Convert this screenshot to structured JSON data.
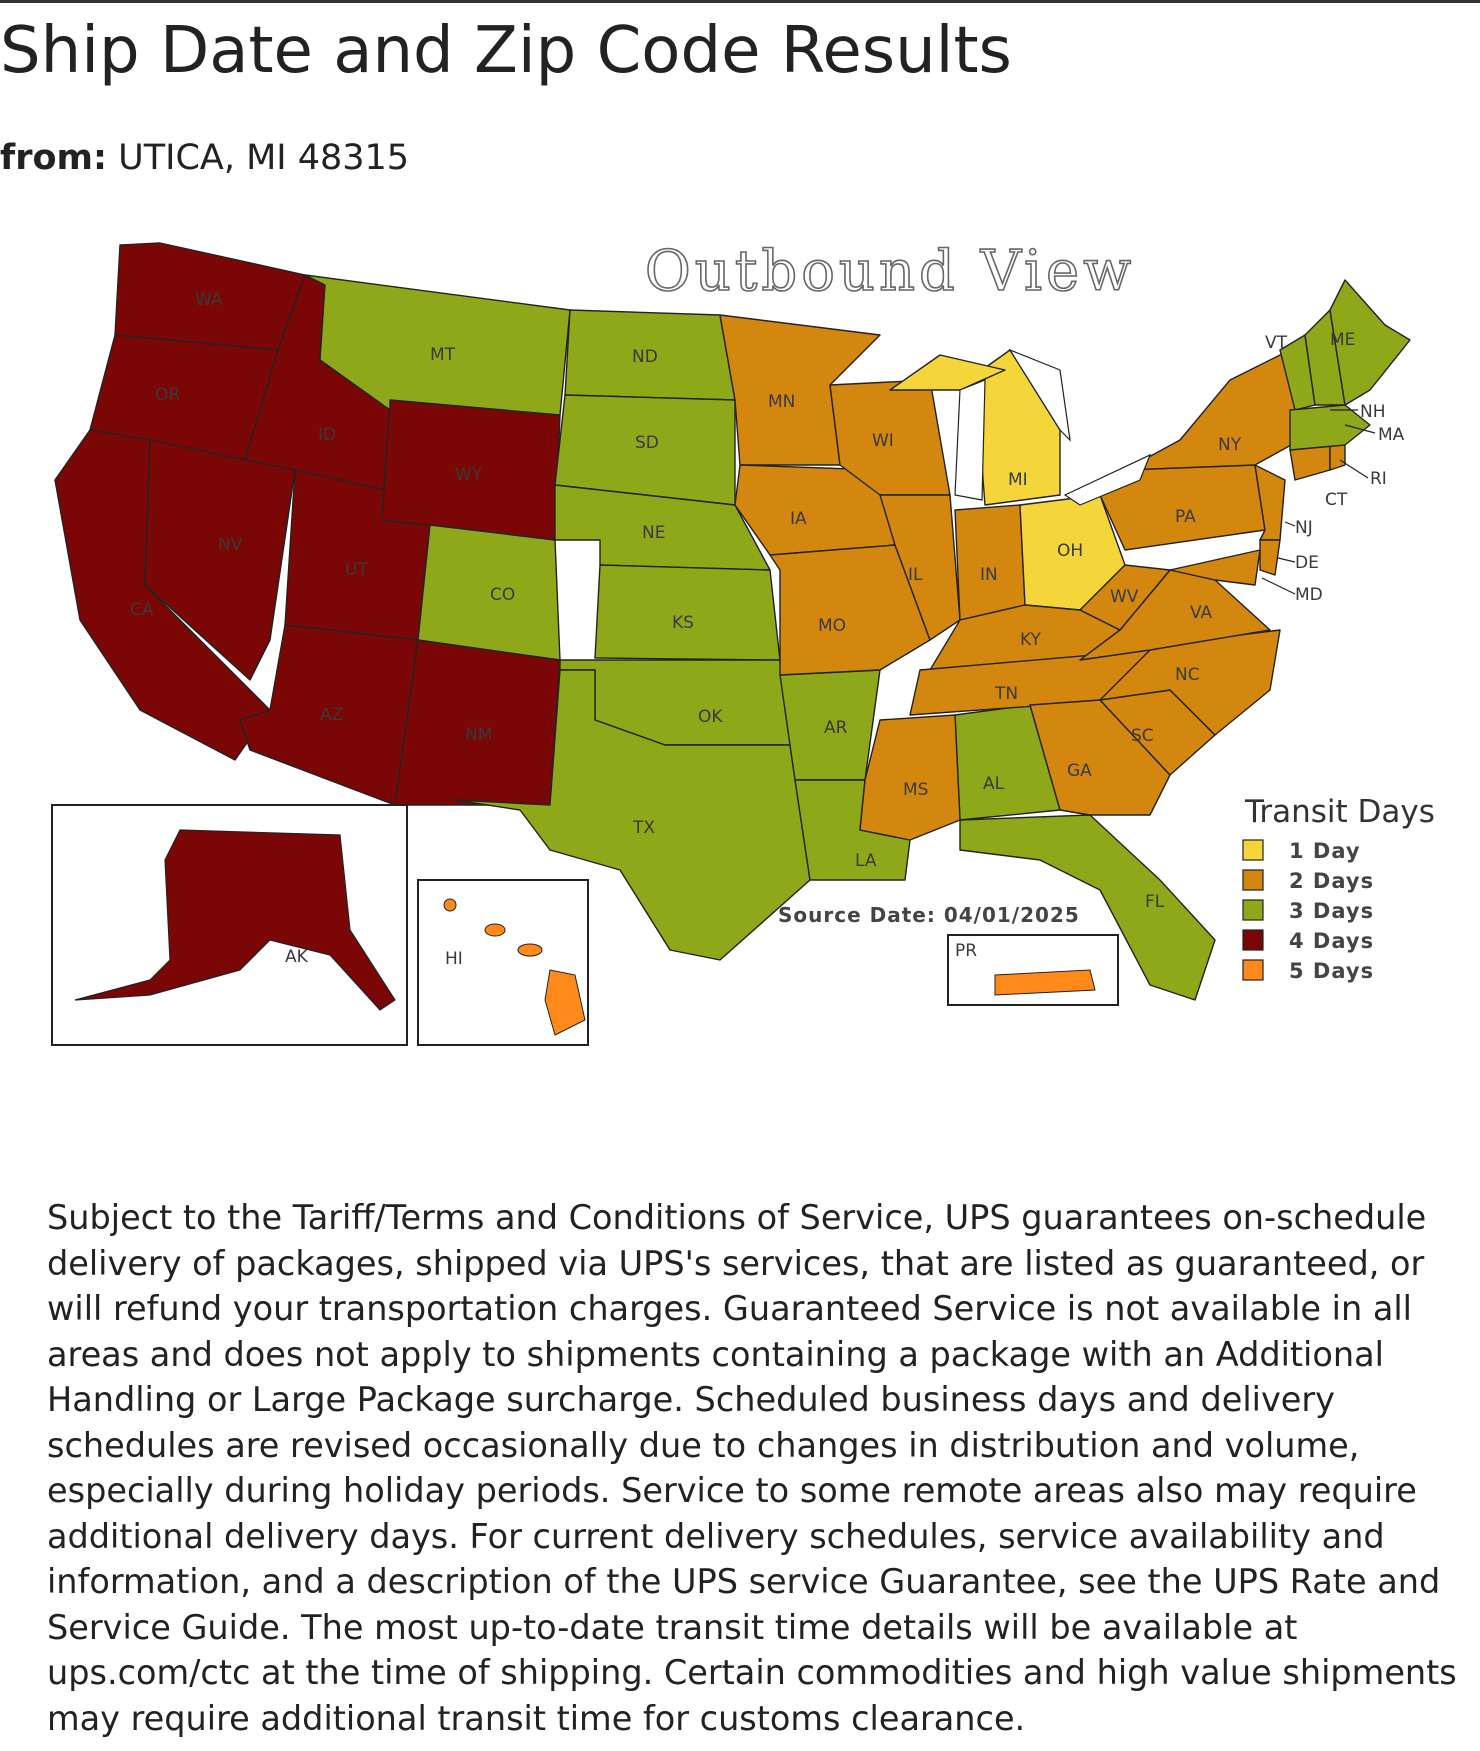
{
  "page": {
    "title": "Ship Date and Zip Code Results",
    "from_label": "from:",
    "from_value": "UTICA, MI 48315"
  },
  "map": {
    "title": "Outbound View",
    "source_date": "Source Date: 04/01/2025",
    "legend": {
      "title": "Transit Days",
      "items": [
        {
          "label": "1 Day",
          "color": "#F5D63A"
        },
        {
          "label": "2 Days",
          "color": "#D4870F"
        },
        {
          "label": "3 Days",
          "color": "#8FA81A"
        },
        {
          "label": "4 Days",
          "color": "#7A0606"
        },
        {
          "label": "5 Days",
          "color": "#FF8A1A"
        }
      ]
    },
    "states": [
      {
        "abbr": "WA",
        "transit_days": 4
      },
      {
        "abbr": "OR",
        "transit_days": 4
      },
      {
        "abbr": "CA",
        "transit_days": 4
      },
      {
        "abbr": "ID",
        "transit_days": 4
      },
      {
        "abbr": "NV",
        "transit_days": 4
      },
      {
        "abbr": "UT",
        "transit_days": 4
      },
      {
        "abbr": "AZ",
        "transit_days": 4
      },
      {
        "abbr": "NM",
        "transit_days": 4
      },
      {
        "abbr": "WY",
        "transit_days": 4
      },
      {
        "abbr": "MT",
        "transit_days": 3
      },
      {
        "abbr": "CO",
        "transit_days": 3
      },
      {
        "abbr": "ND",
        "transit_days": 3
      },
      {
        "abbr": "SD",
        "transit_days": 3
      },
      {
        "abbr": "NE",
        "transit_days": 3
      },
      {
        "abbr": "KS",
        "transit_days": 3
      },
      {
        "abbr": "OK",
        "transit_days": 3
      },
      {
        "abbr": "TX",
        "transit_days": 3
      },
      {
        "abbr": "AR",
        "transit_days": 3
      },
      {
        "abbr": "LA",
        "transit_days": 3
      },
      {
        "abbr": "FL",
        "transit_days": 3
      },
      {
        "abbr": "AL",
        "transit_days": 3
      },
      {
        "abbr": "MN",
        "transit_days": 2
      },
      {
        "abbr": "IA",
        "transit_days": 2
      },
      {
        "abbr": "MO",
        "transit_days": 2
      },
      {
        "abbr": "WI",
        "transit_days": 2
      },
      {
        "abbr": "IL",
        "transit_days": 2
      },
      {
        "abbr": "IN",
        "transit_days": 2
      },
      {
        "abbr": "OH",
        "transit_days": 1
      },
      {
        "abbr": "MI",
        "transit_days": 1
      },
      {
        "abbr": "KY",
        "transit_days": 2
      },
      {
        "abbr": "TN",
        "transit_days": 2
      },
      {
        "abbr": "MS",
        "transit_days": 2
      },
      {
        "abbr": "GA",
        "transit_days": 2
      },
      {
        "abbr": "SC",
        "transit_days": 2
      },
      {
        "abbr": "NC",
        "transit_days": 2
      },
      {
        "abbr": "VA",
        "transit_days": 2
      },
      {
        "abbr": "WV",
        "transit_days": 2
      },
      {
        "abbr": "PA",
        "transit_days": 2
      },
      {
        "abbr": "NY",
        "transit_days": 2
      },
      {
        "abbr": "VT",
        "transit_days": 3
      },
      {
        "abbr": "ME",
        "transit_days": 3
      },
      {
        "abbr": "NH",
        "transit_days": 3
      },
      {
        "abbr": "MA",
        "transit_days": 3
      },
      {
        "abbr": "RI",
        "transit_days": 2
      },
      {
        "abbr": "CT",
        "transit_days": 2
      },
      {
        "abbr": "NJ",
        "transit_days": 2
      },
      {
        "abbr": "DE",
        "transit_days": 2
      },
      {
        "abbr": "MD",
        "transit_days": 2
      },
      {
        "abbr": "AK",
        "transit_days": 4
      },
      {
        "abbr": "HI",
        "transit_days": 5
      },
      {
        "abbr": "PR",
        "transit_days": 5
      }
    ]
  },
  "disclaimer": "Subject to the Tariff/Terms and Conditions of Service, UPS guarantees on-schedule delivery of packages, shipped via UPS's services, that are listed as guaranteed, or will refund your transportation charges. Guaranteed Service is not available in all areas and does not apply to shipments containing a package with an Additional Handling or Large Package surcharge. Scheduled business days and delivery schedules are revised occasionally due to changes in distribution and volume, especially during holiday periods. Service to some remote areas also may require additional delivery days. For current delivery schedules, service availability and information, and a description of the UPS service Guarantee, see the UPS Rate and Service Guide. The most up-to-date transit time details will be available at ups.com/ctc at the time of shipping. Certain commodities and high value shipments may require additional transit time for customs clearance."
}
